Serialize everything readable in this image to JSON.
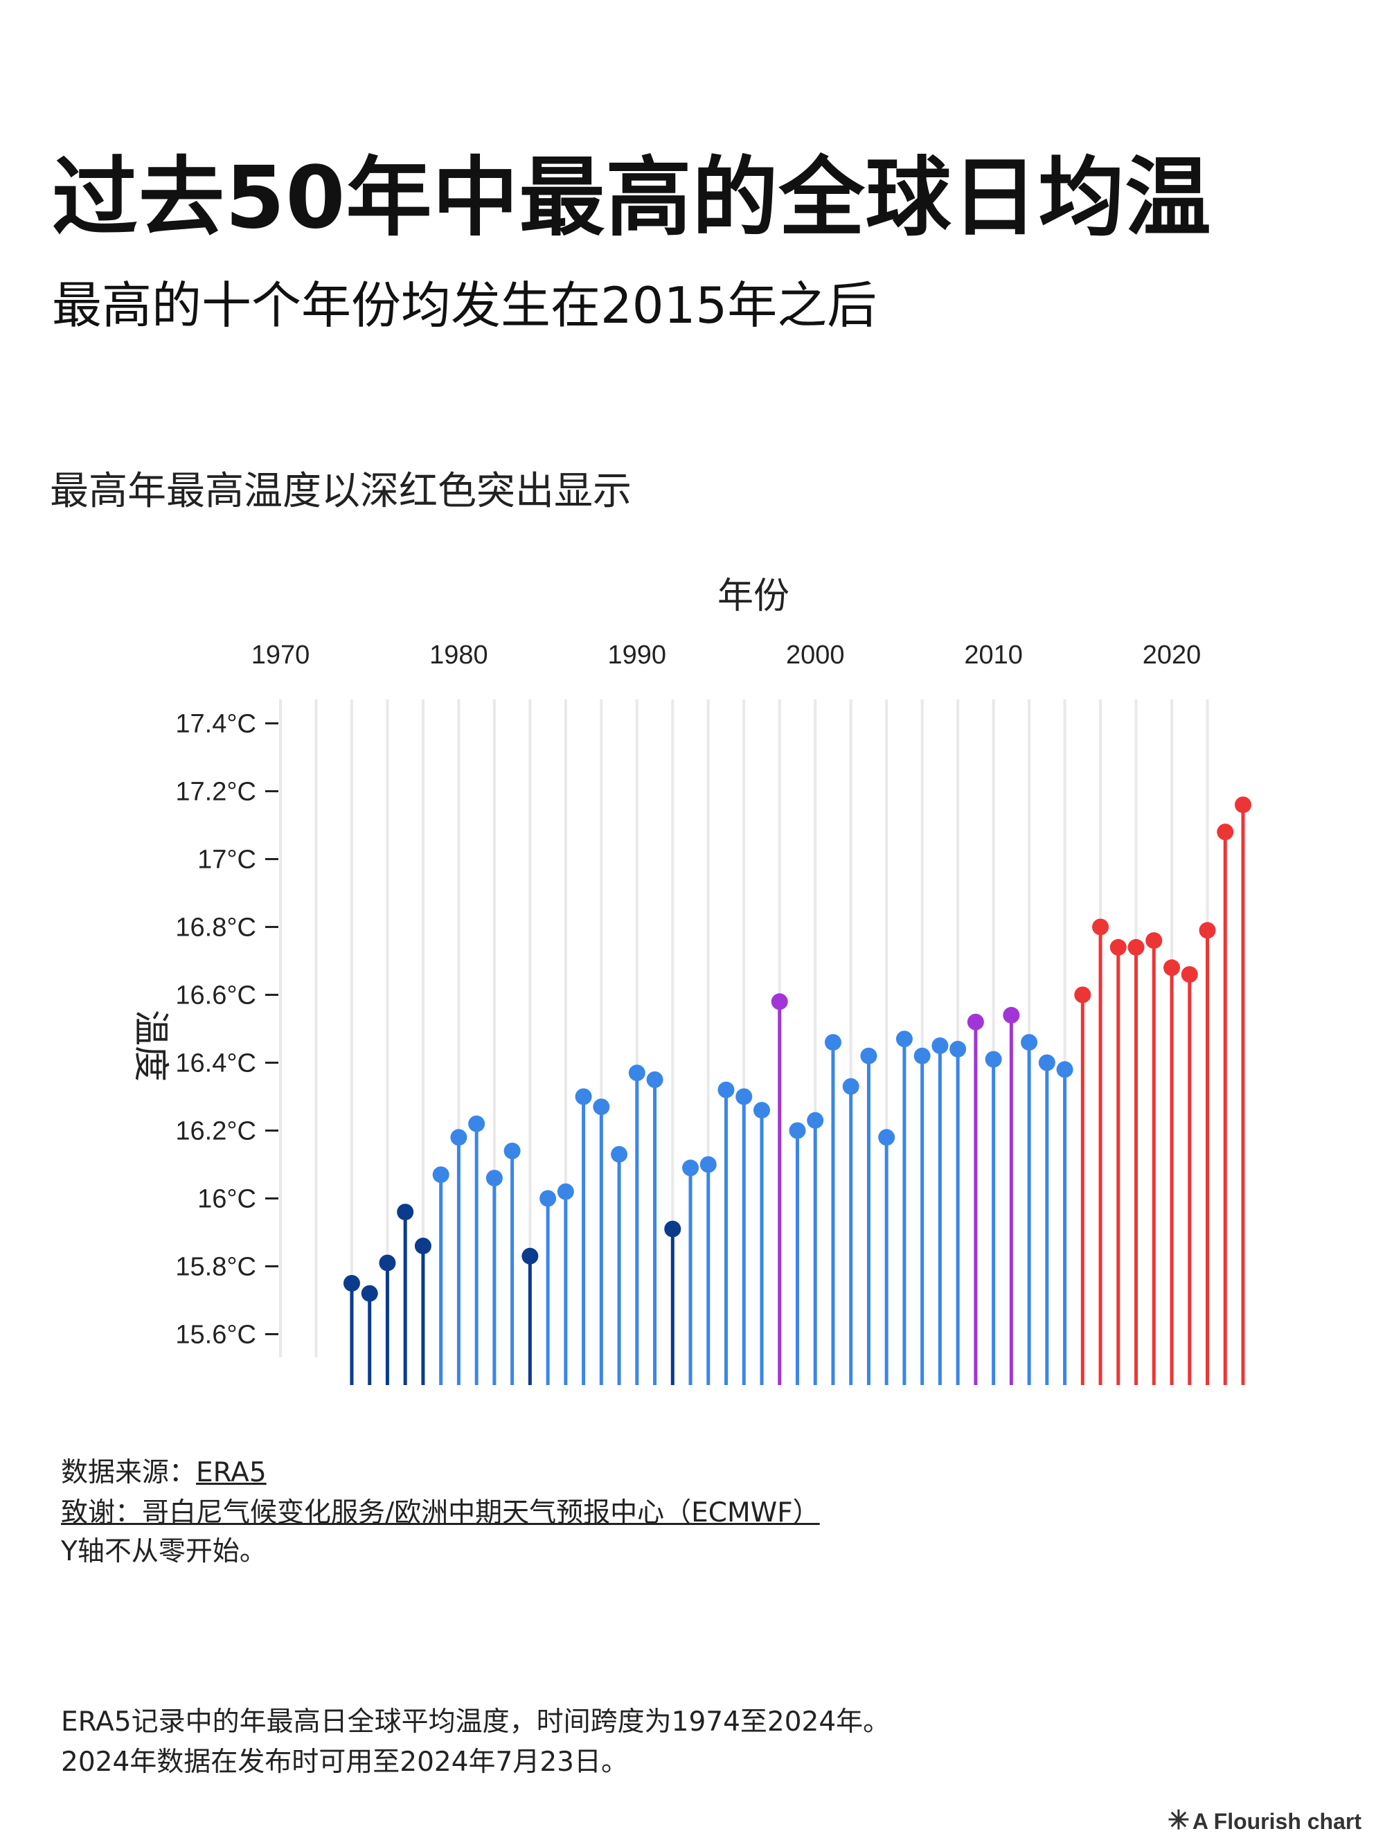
{
  "header": {
    "title": "过去50年中最高的全球日均温",
    "subtitle": "最高的十个年份均发生在2015年之后",
    "note": "最高年最高温度以深红色突出显示"
  },
  "footer": {
    "source_label": "数据来源：",
    "source_link": "ERA5",
    "credit_label": "致谢：",
    "credit_link": "哥白尼气候变化服务/欧洲中期天气预报中心（ECMWF）",
    "axis_note": "Y轴不从零开始。",
    "description_1": "ERA5记录中的年最高日全球平均温度，时间跨度为1974至2024年。",
    "description_2": "2024年数据在发布时可用至2024年7月23日。"
  },
  "branding": {
    "icon": "asterisk-icon",
    "label": "A Flourish chart"
  },
  "colors": {
    "dark_blue": "#0b3b8c",
    "blue": "#3a86e8",
    "purple": "#a235d6",
    "red": "#ee3535",
    "grid": "#e9e9e9"
  },
  "chart_data": {
    "type": "lollipop",
    "xlabel": "年份",
    "ylabel": "温度",
    "xlim": [
      1970,
      2024
    ],
    "xticks": [
      1970,
      1980,
      1990,
      2000,
      2010,
      2020
    ],
    "ylim": [
      15.45,
      17.45
    ],
    "yticks": [
      {
        "value": 15.6,
        "label": "15.6°C"
      },
      {
        "value": 15.8,
        "label": "15.8°C"
      },
      {
        "value": 16.0,
        "label": "16°C"
      },
      {
        "value": 16.2,
        "label": "16.2°C"
      },
      {
        "value": 16.4,
        "label": "16.4°C"
      },
      {
        "value": 16.6,
        "label": "16.6°C"
      },
      {
        "value": 16.8,
        "label": "16.8°C"
      },
      {
        "value": 17.0,
        "label": "17°C"
      },
      {
        "value": 17.2,
        "label": "17.2°C"
      },
      {
        "value": 17.4,
        "label": "17.4°C"
      }
    ],
    "x_axis_position": "top",
    "grid": true,
    "points": [
      {
        "year": 1974,
        "value": 15.75,
        "group": "dark_blue"
      },
      {
        "year": 1975,
        "value": 15.72,
        "group": "dark_blue"
      },
      {
        "year": 1976,
        "value": 15.81,
        "group": "dark_blue"
      },
      {
        "year": 1977,
        "value": 15.96,
        "group": "dark_blue"
      },
      {
        "year": 1978,
        "value": 15.86,
        "group": "dark_blue"
      },
      {
        "year": 1979,
        "value": 16.07,
        "group": "blue"
      },
      {
        "year": 1980,
        "value": 16.18,
        "group": "blue"
      },
      {
        "year": 1981,
        "value": 16.22,
        "group": "blue"
      },
      {
        "year": 1982,
        "value": 16.06,
        "group": "blue"
      },
      {
        "year": 1983,
        "value": 16.14,
        "group": "blue"
      },
      {
        "year": 1984,
        "value": 15.83,
        "group": "dark_blue"
      },
      {
        "year": 1985,
        "value": 16.0,
        "group": "blue"
      },
      {
        "year": 1986,
        "value": 16.02,
        "group": "blue"
      },
      {
        "year": 1987,
        "value": 16.3,
        "group": "blue"
      },
      {
        "year": 1988,
        "value": 16.27,
        "group": "blue"
      },
      {
        "year": 1989,
        "value": 16.13,
        "group": "blue"
      },
      {
        "year": 1990,
        "value": 16.37,
        "group": "blue"
      },
      {
        "year": 1991,
        "value": 16.35,
        "group": "blue"
      },
      {
        "year": 1992,
        "value": 15.91,
        "group": "dark_blue"
      },
      {
        "year": 1993,
        "value": 16.09,
        "group": "blue"
      },
      {
        "year": 1994,
        "value": 16.1,
        "group": "blue"
      },
      {
        "year": 1995,
        "value": 16.32,
        "group": "blue"
      },
      {
        "year": 1996,
        "value": 16.3,
        "group": "blue"
      },
      {
        "year": 1997,
        "value": 16.26,
        "group": "blue"
      },
      {
        "year": 1998,
        "value": 16.58,
        "group": "purple"
      },
      {
        "year": 1999,
        "value": 16.2,
        "group": "blue"
      },
      {
        "year": 2000,
        "value": 16.23,
        "group": "blue"
      },
      {
        "year": 2001,
        "value": 16.46,
        "group": "blue"
      },
      {
        "year": 2002,
        "value": 16.33,
        "group": "blue"
      },
      {
        "year": 2003,
        "value": 16.42,
        "group": "blue"
      },
      {
        "year": 2004,
        "value": 16.18,
        "group": "blue"
      },
      {
        "year": 2005,
        "value": 16.47,
        "group": "blue"
      },
      {
        "year": 2006,
        "value": 16.42,
        "group": "blue"
      },
      {
        "year": 2007,
        "value": 16.45,
        "group": "blue"
      },
      {
        "year": 2008,
        "value": 16.44,
        "group": "blue"
      },
      {
        "year": 2009,
        "value": 16.52,
        "group": "purple"
      },
      {
        "year": 2010,
        "value": 16.41,
        "group": "blue"
      },
      {
        "year": 2011,
        "value": 16.54,
        "group": "purple"
      },
      {
        "year": 2012,
        "value": 16.46,
        "group": "blue"
      },
      {
        "year": 2013,
        "value": 16.4,
        "group": "blue"
      },
      {
        "year": 2014,
        "value": 16.38,
        "group": "blue"
      },
      {
        "year": 2015,
        "value": 16.6,
        "group": "red"
      },
      {
        "year": 2016,
        "value": 16.8,
        "group": "red"
      },
      {
        "year": 2017,
        "value": 16.74,
        "group": "red"
      },
      {
        "year": 2018,
        "value": 16.74,
        "group": "red"
      },
      {
        "year": 2019,
        "value": 16.76,
        "group": "red"
      },
      {
        "year": 2020,
        "value": 16.68,
        "group": "red"
      },
      {
        "year": 2021,
        "value": 16.66,
        "group": "red"
      },
      {
        "year": 2022,
        "value": 16.79,
        "group": "red"
      },
      {
        "year": 2023,
        "value": 17.08,
        "group": "red"
      },
      {
        "year": 2024,
        "value": 17.16,
        "group": "red"
      }
    ]
  }
}
